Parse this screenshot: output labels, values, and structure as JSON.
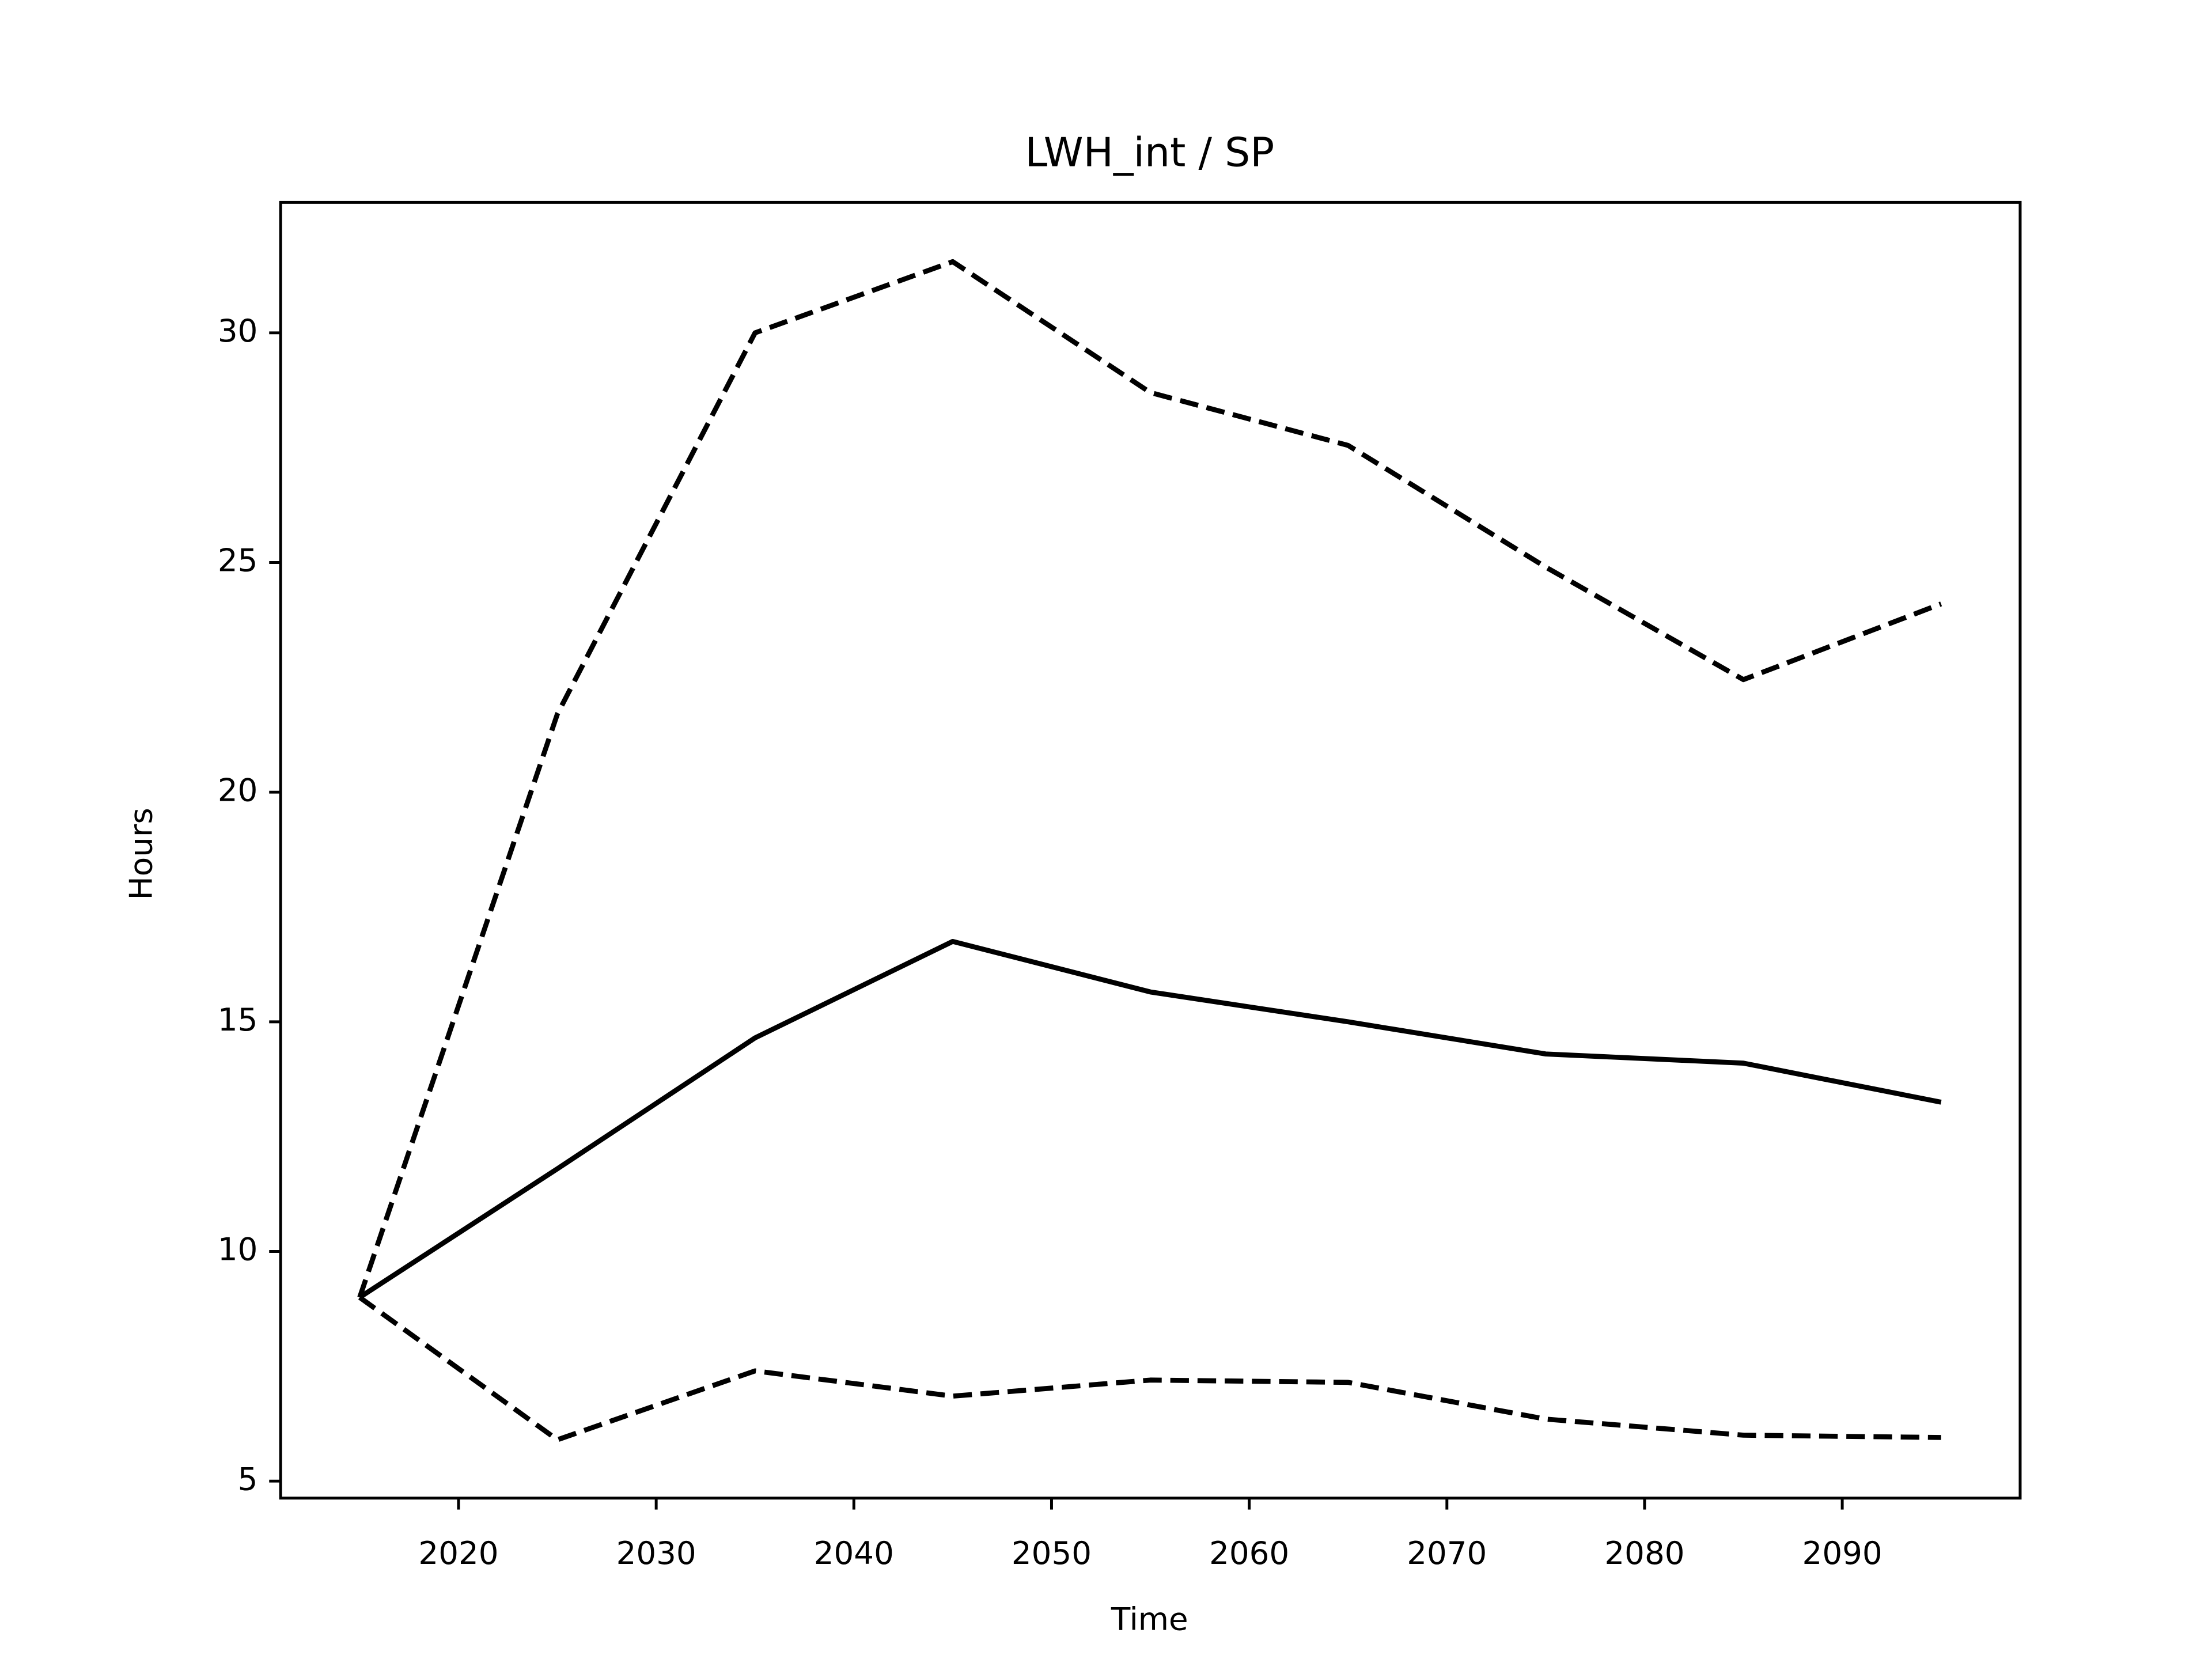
{
  "chart_data": {
    "type": "line",
    "title": "LWH_int / SP",
    "x_label": "Time",
    "y_label": "Hours",
    "x": [
      2015,
      2025,
      2035,
      2045,
      2055,
      2065,
      2075,
      2085,
      2095
    ],
    "series": [
      {
        "color": "#000000",
        "dash": false,
        "values": [
          9.0,
          11.8,
          14.65,
          16.75,
          15.65,
          15.0,
          14.3,
          14.1,
          13.25
        ]
      },
      {
        "color": "#000000",
        "dash": true,
        "values": [
          9.0,
          21.7,
          30.0,
          31.55,
          28.7,
          27.55,
          24.9,
          22.45,
          24.1
        ]
      },
      {
        "color": "#000000",
        "dash": true,
        "values": [
          9.0,
          5.9,
          7.4,
          6.85,
          7.2,
          7.15,
          6.35,
          6.0,
          5.95
        ]
      }
    ],
    "xlim": [
      2011,
      2099
    ],
    "ylim": [
      4.63,
      32.84
    ],
    "xticks": [
      2020,
      2030,
      2040,
      2050,
      2060,
      2070,
      2080,
      2090
    ],
    "yticks": [
      5,
      10,
      15,
      20,
      25,
      30
    ],
    "grid": false
  }
}
